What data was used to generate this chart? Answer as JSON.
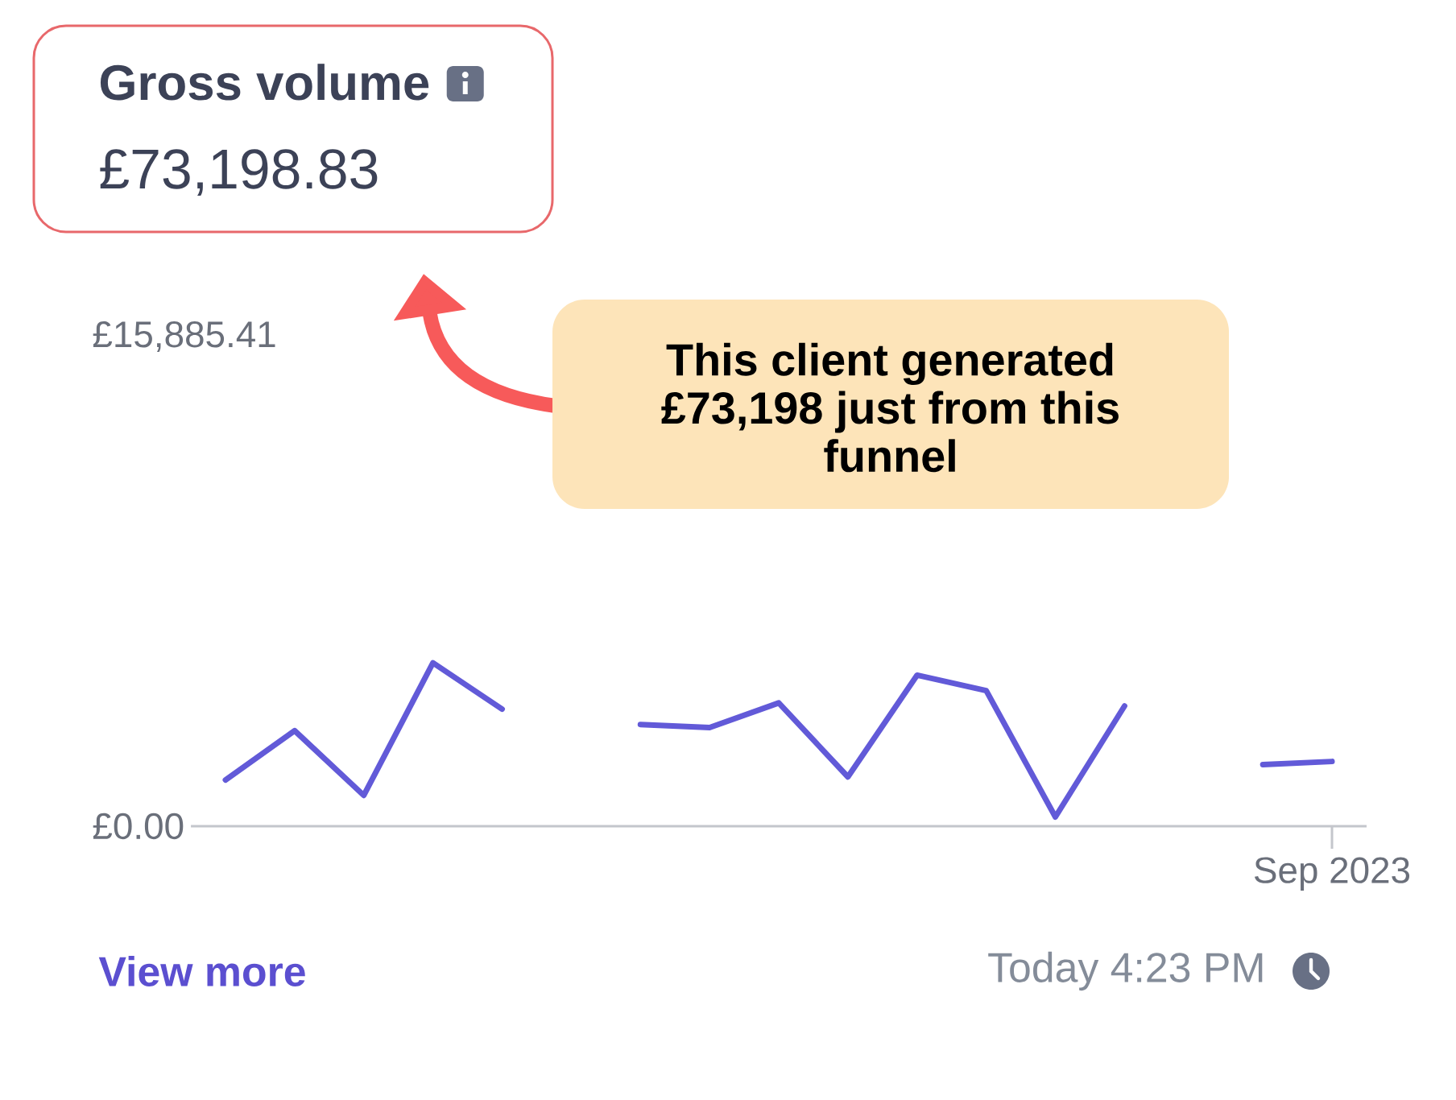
{
  "chart_data": {
    "type": "line",
    "title": "Gross volume",
    "subtitle": "£73,198.83",
    "categories": [
      null,
      null,
      null,
      null,
      null,
      null,
      null,
      null,
      null,
      null,
      null,
      null,
      null,
      null,
      null,
      null,
      "Sep 2023"
    ],
    "values": [
      1500,
      3100,
      1000,
      5300,
      3800,
      null,
      3300,
      3200,
      4000,
      1600,
      4900,
      4400,
      300,
      3900,
      null,
      2000,
      2100
    ],
    "color": "#625ad8",
    "ylim": [
      0,
      15885.41
    ],
    "yticks": [
      {
        "value": 0,
        "label": "£0.00"
      },
      {
        "value": 15885.41,
        "label": "£15,885.41"
      }
    ],
    "annotations": [
      "This client generated £73,198 just from this funnel",
      "View more",
      "Today 4:23 PM"
    ]
  }
}
